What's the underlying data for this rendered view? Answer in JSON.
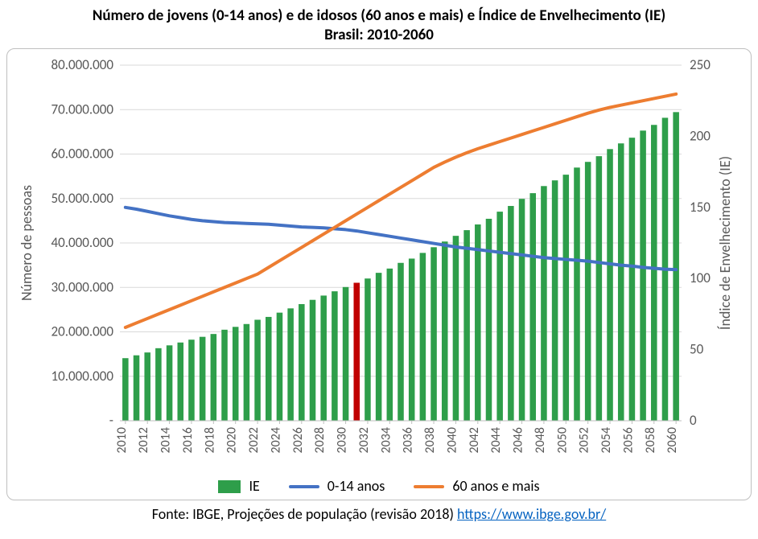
{
  "title_line1": "Número de jovens (0-14 anos) e de idosos (60 anos e mais) e Índice de Envelhecimento (IE)",
  "title_line2": "Brasil: 2010-2060",
  "title_fontsize": 19,
  "footer_text_prefix": "Fonte: IBGE, Projeções de população (revisão 2018)  ",
  "footer_link_text": "https://www.ibge.gov.br/",
  "footer_fontsize": 18,
  "chart": {
    "type": "combo-bar-line-dual-axis",
    "background_color": "#ffffff",
    "border_color": "#bfbfbf",
    "grid_color": "#d9d9d9",
    "axis_text_color": "#595959",
    "y_left": {
      "title": "Número de pessoas",
      "min": 0,
      "max": 80000000,
      "step": 10000000,
      "tick_labels": [
        "-",
        "10.000.000",
        "20.000.000",
        "30.000.000",
        "40.000.000",
        "50.000.000",
        "60.000.000",
        "70.000.000",
        "80.000.000"
      ]
    },
    "y_right": {
      "title": "Índice de Envelhecimento (IE)",
      "min": 0,
      "max": 250,
      "step": 50,
      "tick_labels": [
        "0",
        "50",
        "100",
        "150",
        "200",
        "250"
      ]
    },
    "x": {
      "years_all": [
        2010,
        2011,
        2012,
        2013,
        2014,
        2015,
        2016,
        2017,
        2018,
        2019,
        2020,
        2021,
        2022,
        2023,
        2024,
        2025,
        2026,
        2027,
        2028,
        2029,
        2030,
        2031,
        2032,
        2033,
        2034,
        2035,
        2036,
        2037,
        2038,
        2039,
        2040,
        2041,
        2042,
        2043,
        2044,
        2045,
        2046,
        2047,
        2048,
        2049,
        2050,
        2051,
        2052,
        2053,
        2054,
        2055,
        2056,
        2057,
        2058,
        2059,
        2060
      ],
      "tick_years": [
        2010,
        2012,
        2014,
        2016,
        2018,
        2020,
        2022,
        2024,
        2026,
        2028,
        2030,
        2032,
        2034,
        2036,
        2038,
        2040,
        2042,
        2044,
        2046,
        2048,
        2050,
        2052,
        2054,
        2056,
        2058,
        2060
      ]
    },
    "series": {
      "ie_bars": {
        "label": "IE",
        "color": "#2e9e4a",
        "highlight_color": "#c00000",
        "highlight_year": 2031,
        "bar_width_frac": 0.55,
        "values": [
          44,
          46,
          48,
          51,
          53,
          55,
          57,
          59,
          61,
          64,
          66,
          68,
          71,
          73,
          76,
          79,
          82,
          85,
          88,
          91,
          94,
          97,
          100,
          104,
          107,
          111,
          114,
          118,
          122,
          126,
          130,
          134,
          138,
          142,
          147,
          151,
          156,
          160,
          165,
          169,
          173,
          178,
          182,
          186,
          191,
          195,
          199,
          204,
          208,
          213,
          217
        ]
      },
      "young_line": {
        "label": "0-14 anos",
        "color": "#4472c4",
        "width": 4,
        "values": [
          48000000,
          47600000,
          47100000,
          46600000,
          46100000,
          45700000,
          45300000,
          45000000,
          44800000,
          44600000,
          44500000,
          44400000,
          44300000,
          44200000,
          44000000,
          43800000,
          43600000,
          43500000,
          43400000,
          43200000,
          43000000,
          42700000,
          42300000,
          41900000,
          41500000,
          41100000,
          40700000,
          40300000,
          39900000,
          39500000,
          39100000,
          38800000,
          38500000,
          38200000,
          37900000,
          37600000,
          37300000,
          37000000,
          36700000,
          36500000,
          36300000,
          36100000,
          35900000,
          35600000,
          35300000,
          35000000,
          34800000,
          34500000,
          34300000,
          34100000,
          34000000
        ]
      },
      "old_line": {
        "label": "60 anos e mais",
        "color": "#ed7d31",
        "width": 4,
        "values": [
          21000000,
          22000000,
          23000000,
          24000000,
          25000000,
          26000000,
          27000000,
          28000000,
          29000000,
          30000000,
          31000000,
          32000000,
          33000000,
          34500000,
          36000000,
          37500000,
          39000000,
          40500000,
          42000000,
          43500000,
          45000000,
          46500000,
          48000000,
          49500000,
          51000000,
          52500000,
          54000000,
          55500000,
          57000000,
          58200000,
          59300000,
          60300000,
          61200000,
          62000000,
          62800000,
          63600000,
          64400000,
          65200000,
          66000000,
          66800000,
          67600000,
          68400000,
          69200000,
          69900000,
          70500000,
          71000000,
          71500000,
          72000000,
          72500000,
          73000000,
          73500000
        ]
      }
    },
    "legend": {
      "items": [
        "IE",
        "0-14 anos",
        "60 anos e mais"
      ]
    }
  }
}
